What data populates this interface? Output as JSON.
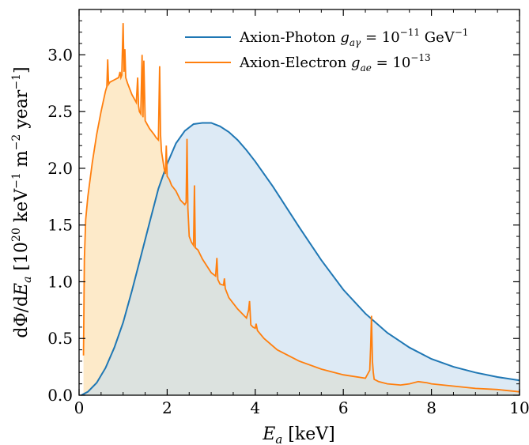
{
  "chart_data": {
    "type": "area",
    "xlabel": "E_a [keV]",
    "ylabel": "dΦ/dE_a [10^20 keV^-1 m^-2 year^-1]",
    "xlim": [
      0,
      10
    ],
    "ylim": [
      0,
      3.4
    ],
    "x_ticks": [
      "0",
      "2",
      "4",
      "6",
      "8",
      "10"
    ],
    "y_ticks": [
      "0.0",
      "0.5",
      "1.0",
      "1.5",
      "2.0",
      "2.5",
      "3.0"
    ],
    "grid": false,
    "legend_position": "top-right",
    "series": [
      {
        "name": "Axion-Photon g_aγ = 10^-11 GeV^-1",
        "color": "#1f77b4",
        "fill": "#c6dcee",
        "x": [
          0.05,
          0.2,
          0.4,
          0.6,
          0.8,
          1.0,
          1.2,
          1.4,
          1.6,
          1.8,
          2.0,
          2.2,
          2.4,
          2.6,
          2.8,
          3.0,
          3.2,
          3.4,
          3.6,
          3.8,
          4.0,
          4.2,
          4.4,
          4.6,
          4.8,
          5.0,
          5.5,
          6.0,
          6.5,
          7.0,
          7.5,
          8.0,
          8.5,
          9.0,
          9.5,
          10.0
        ],
        "values": [
          0.0,
          0.03,
          0.11,
          0.24,
          0.42,
          0.64,
          0.92,
          1.22,
          1.52,
          1.82,
          2.04,
          2.22,
          2.33,
          2.39,
          2.4,
          2.4,
          2.37,
          2.32,
          2.25,
          2.16,
          2.06,
          1.95,
          1.84,
          1.72,
          1.6,
          1.48,
          1.19,
          0.93,
          0.72,
          0.55,
          0.42,
          0.32,
          0.25,
          0.2,
          0.16,
          0.13
        ]
      },
      {
        "name": "Axion-Electron g_ae = 10^-13",
        "color": "#ff7f0e",
        "fill": "#fde6bf",
        "x": [
          0.1,
          0.12,
          0.15,
          0.2,
          0.3,
          0.4,
          0.5,
          0.6,
          0.63,
          0.65,
          0.67,
          0.7,
          0.8,
          0.9,
          0.93,
          0.95,
          0.97,
          1.0,
          1.02,
          1.04,
          1.06,
          1.1,
          1.2,
          1.3,
          1.33,
          1.35,
          1.37,
          1.4,
          1.43,
          1.45,
          1.47,
          1.5,
          1.6,
          1.7,
          1.75,
          1.8,
          1.83,
          1.85,
          1.87,
          1.9,
          1.93,
          1.96,
          1.98,
          2.0,
          2.05,
          2.1,
          2.2,
          2.3,
          2.4,
          2.43,
          2.45,
          2.47,
          2.5,
          2.55,
          2.6,
          2.62,
          2.64,
          2.7,
          2.8,
          3.0,
          3.1,
          3.13,
          3.15,
          3.2,
          3.28,
          3.3,
          3.32,
          3.4,
          3.6,
          3.8,
          3.85,
          3.87,
          3.9,
          3.95,
          4.0,
          4.02,
          4.05,
          4.2,
          4.5,
          5.0,
          5.5,
          6.0,
          6.5,
          6.6,
          6.62,
          6.64,
          6.66,
          6.68,
          6.7,
          6.75,
          6.8,
          7.0,
          7.3,
          7.5,
          7.7,
          7.9,
          8.0,
          8.5,
          9.0,
          9.5,
          10.0
        ],
        "values": [
          0.35,
          1.2,
          1.55,
          1.75,
          2.05,
          2.3,
          2.5,
          2.68,
          2.72,
          2.96,
          2.74,
          2.76,
          2.78,
          2.8,
          2.85,
          2.8,
          2.82,
          3.28,
          2.85,
          3.05,
          2.8,
          2.75,
          2.65,
          2.58,
          2.8,
          2.55,
          2.5,
          2.48,
          3.0,
          2.45,
          2.95,
          2.42,
          2.35,
          2.3,
          2.27,
          2.25,
          2.9,
          2.3,
          2.15,
          2.08,
          2.0,
          1.95,
          2.2,
          1.93,
          1.9,
          1.85,
          1.8,
          1.72,
          1.68,
          1.7,
          2.26,
          1.65,
          1.4,
          1.35,
          1.32,
          1.85,
          1.3,
          1.28,
          1.2,
          1.08,
          1.05,
          1.21,
          1.02,
          0.98,
          0.97,
          1.03,
          0.94,
          0.86,
          0.76,
          0.68,
          0.75,
          0.83,
          0.62,
          0.6,
          0.59,
          0.63,
          0.57,
          0.5,
          0.4,
          0.3,
          0.23,
          0.18,
          0.15,
          0.22,
          0.42,
          0.7,
          0.3,
          0.2,
          0.14,
          0.13,
          0.12,
          0.1,
          0.09,
          0.1,
          0.12,
          0.11,
          0.1,
          0.08,
          0.06,
          0.05,
          0.03
        ]
      }
    ]
  }
}
